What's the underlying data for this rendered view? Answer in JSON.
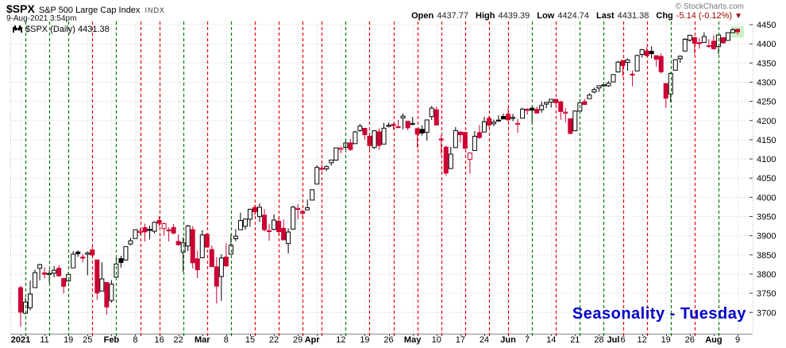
{
  "header": {
    "symbol": "$SPX",
    "name": "S&P 500 Large Cap Index",
    "exchange": "INDX",
    "datetime": "9-Aug-2021 3:54pm",
    "copyright": "© StockCharts.com",
    "quote": {
      "open_label": "Open",
      "open": "4437.77",
      "high_label": "High",
      "high": "4439.39",
      "low_label": "Low",
      "low": "4424.74",
      "last_label": "Last",
      "last": "4431.38",
      "chg_label": "Chg",
      "chg": "-5.14 (-0.12%)",
      "direction_glyph": "▼"
    }
  },
  "legend": {
    "text": "$SPX (Daily) 4431.38"
  },
  "annotation": {
    "text": "Seasonality - Tuesday",
    "color": "#0000cc"
  },
  "colors": {
    "candle_up": "#000000",
    "candle_down": "#cc0033",
    "tuesday_up_line": "#007a00",
    "tuesday_down_line": "#e60000",
    "grid": "#d6d6d6",
    "axis_line": "#888888",
    "axis_tick": "#444444",
    "axis_text": "#000000",
    "last_bar_highlight": "#ccf2c4",
    "negative_text": "#990000",
    "annotation_blue": "#0000cc"
  },
  "y_axis": {
    "min": 3700,
    "max": 4450,
    "step": 50
  },
  "x_axis": {
    "labels": [
      {
        "t": "2021",
        "i": 0,
        "b": true
      },
      {
        "t": "11",
        "i": 5
      },
      {
        "t": "19",
        "i": 10
      },
      {
        "t": "25",
        "i": 14
      },
      {
        "t": "Feb",
        "i": 19,
        "b": true
      },
      {
        "t": "8",
        "i": 24
      },
      {
        "t": "16",
        "i": 29
      },
      {
        "t": "22",
        "i": 33
      },
      {
        "t": "Mar",
        "i": 38,
        "b": true
      },
      {
        "t": "8",
        "i": 43
      },
      {
        "t": "15",
        "i": 48
      },
      {
        "t": "22",
        "i": 53
      },
      {
        "t": "29",
        "i": 58
      },
      {
        "t": "Apr",
        "i": 61,
        "b": true
      },
      {
        "t": "12",
        "i": 67
      },
      {
        "t": "19",
        "i": 72
      },
      {
        "t": "26",
        "i": 77
      },
      {
        "t": "May",
        "i": 82,
        "b": true
      },
      {
        "t": "10",
        "i": 87
      },
      {
        "t": "17",
        "i": 92
      },
      {
        "t": "24",
        "i": 97
      },
      {
        "t": "Jun",
        "i": 102,
        "b": true
      },
      {
        "t": "7",
        "i": 106
      },
      {
        "t": "14",
        "i": 111
      },
      {
        "t": "21",
        "i": 116
      },
      {
        "t": "28",
        "i": 121
      },
      {
        "t": "Jul",
        "i": 124,
        "b": true
      },
      {
        "t": "6",
        "i": 126
      },
      {
        "t": "12",
        "i": 130
      },
      {
        "t": "19",
        "i": 135
      },
      {
        "t": "26",
        "i": 140
      },
      {
        "t": "Aug",
        "i": 145,
        "b": true
      },
      {
        "t": "9",
        "i": 150
      }
    ]
  },
  "chart_data": {
    "type": "candlestick",
    "title": "$SPX (Daily)",
    "timeframe": "Daily",
    "date_range": [
      "2021-01-04",
      "2021-08-09"
    ],
    "ylim": [
      3645,
      4458
    ],
    "y_tick_step": 50,
    "grid": "dotted gray: horizontal every 50 pts, vertical at each week start",
    "vertical_line_rule": "dashed line at every Tuesday: green if close above previous close, red if below",
    "candle_scheme": "hollow if close>open, filled if close<=open; black if close>=prev close, red if below",
    "candles": [
      [
        "2021-01-04",
        3764.61,
        3769.99,
        3662.71,
        3700.65
      ],
      [
        "2021-01-05",
        3698.02,
        3737.83,
        3695.07,
        3726.86
      ],
      [
        "2021-01-06",
        3712.2,
        3783.04,
        3705.34,
        3748.14
      ],
      [
        "2021-01-07",
        3764.71,
        3811.55,
        3764.71,
        3803.79
      ],
      [
        "2021-01-08",
        3815.05,
        3826.69,
        3783.6,
        3824.68
      ],
      [
        "2021-01-11",
        3803.14,
        3817.86,
        3789.02,
        3799.61
      ],
      [
        "2021-01-12",
        3801.62,
        3810.78,
        3776.51,
        3801.19
      ],
      [
        "2021-01-13",
        3802.23,
        3820.96,
        3791.5,
        3809.84
      ],
      [
        "2021-01-14",
        3814.98,
        3823.6,
        3792.86,
        3795.54
      ],
      [
        "2021-01-15",
        3788.73,
        3788.73,
        3749.62,
        3768.25
      ],
      [
        "2021-01-19",
        3781.88,
        3804.53,
        3780.37,
        3798.91
      ],
      [
        "2021-01-20",
        3816.22,
        3859.75,
        3816.22,
        3851.85
      ],
      [
        "2021-01-21",
        3857.46,
        3861.45,
        3845.05,
        3853.07
      ],
      [
        "2021-01-22",
        3844.24,
        3852.31,
        3830.41,
        3841.47
      ],
      [
        "2021-01-25",
        3851.68,
        3859.23,
        3797.16,
        3855.36
      ],
      [
        "2021-01-26",
        3862.96,
        3870.9,
        3847.78,
        3849.62
      ],
      [
        "2021-01-27",
        3836.83,
        3836.83,
        3732.48,
        3750.77
      ],
      [
        "2021-01-28",
        3755.75,
        3830.5,
        3755.75,
        3787.38
      ],
      [
        "2021-01-29",
        3778.05,
        3778.05,
        3694.12,
        3714.24
      ],
      [
        "2021-02-01",
        3731.17,
        3784.32,
        3725.62,
        3773.86
      ],
      [
        "2021-02-02",
        3791.84,
        3843.24,
        3791.84,
        3826.31
      ],
      [
        "2021-02-03",
        3840.27,
        3847.51,
        3816.68,
        3830.17
      ],
      [
        "2021-02-04",
        3836.66,
        3872.42,
        3836.66,
        3871.74
      ],
      [
        "2021-02-05",
        3878.3,
        3894.56,
        3874.93,
        3886.83
      ],
      [
        "2021-02-08",
        3892.59,
        3915.77,
        3892.59,
        3915.59
      ],
      [
        "2021-02-09",
        3910.49,
        3918.35,
        3902.64,
        3911.23
      ],
      [
        "2021-02-10",
        3920.78,
        3931.5,
        3884.94,
        3909.88
      ],
      [
        "2021-02-11",
        3916.4,
        3925.99,
        3890.39,
        3916.38
      ],
      [
        "2021-02-12",
        3911.65,
        3937.23,
        3905.78,
        3934.83
      ],
      [
        "2021-02-16",
        3939.61,
        3950.43,
        3923.85,
        3932.59
      ],
      [
        "2021-02-17",
        3918.55,
        3933.61,
        3900.48,
        3931.33
      ],
      [
        "2021-02-18",
        3915.0,
        3921.99,
        3885.03,
        3913.97
      ],
      [
        "2021-02-19",
        3921.16,
        3930.41,
        3903.07,
        3906.71
      ],
      [
        "2021-02-22",
        3885.06,
        3902.91,
        3874.09,
        3876.5
      ],
      [
        "2021-02-23",
        3857.08,
        3895.98,
        3805.59,
        3881.37
      ],
      [
        "2021-02-24",
        3873.2,
        3928.65,
        3859.6,
        3925.43
      ],
      [
        "2021-02-25",
        3915.8,
        3925.02,
        3814.04,
        3829.34
      ],
      [
        "2021-02-26",
        3839.66,
        3861.08,
        3789.54,
        3811.15
      ],
      [
        "2021-03-01",
        3842.51,
        3914.5,
        3842.51,
        3901.82
      ],
      [
        "2021-03-02",
        3903.64,
        3906.41,
        3868.57,
        3870.29
      ],
      [
        "2021-03-03",
        3863.99,
        3874.47,
        3818.86,
        3819.28
      ],
      [
        "2021-03-04",
        3818.53,
        3843.67,
        3723.34,
        3768.47
      ],
      [
        "2021-03-05",
        3793.58,
        3851.69,
        3730.19,
        3841.94
      ],
      [
        "2021-03-08",
        3844.39,
        3881.06,
        3819.25,
        3821.35
      ],
      [
        "2021-03-09",
        3851.93,
        3903.76,
        3851.93,
        3875.44
      ],
      [
        "2021-03-10",
        3891.99,
        3917.35,
        3885.73,
        3898.81
      ],
      [
        "2021-03-11",
        3915.54,
        3960.27,
        3915.54,
        3939.34
      ],
      [
        "2021-03-12",
        3924.52,
        3944.99,
        3915.21,
        3943.34
      ],
      [
        "2021-03-15",
        3942.96,
        3970.08,
        3923.54,
        3968.94
      ],
      [
        "2021-03-16",
        3973.59,
        3981.04,
        3953.44,
        3962.71
      ],
      [
        "2021-03-17",
        3949.57,
        3983.87,
        3935.74,
        3974.12
      ],
      [
        "2021-03-18",
        3953.5,
        3969.62,
        3910.87,
        3915.46
      ],
      [
        "2021-03-19",
        3913.13,
        3930.71,
        3886.75,
        3913.1
      ],
      [
        "2021-03-22",
        3916.49,
        3955.31,
        3914.17,
        3940.59
      ],
      [
        "2021-03-23",
        3937.6,
        3949.58,
        3901.68,
        3910.52
      ],
      [
        "2021-03-24",
        3919.16,
        3942.42,
        3889.07,
        3889.14
      ],
      [
        "2021-03-25",
        3879.31,
        3919.54,
        3853.5,
        3909.52
      ],
      [
        "2021-03-26",
        3917.12,
        3978.19,
        3917.12,
        3974.54
      ],
      [
        "2021-03-29",
        3969.31,
        3981.83,
        3943.25,
        3971.09
      ],
      [
        "2021-03-30",
        3963.34,
        3968.01,
        3944.35,
        3958.55
      ],
      [
        "2021-03-31",
        3967.25,
        3994.41,
        3966.98,
        3972.89
      ],
      [
        "2021-04-01",
        3992.78,
        4020.63,
        3992.78,
        4019.87
      ],
      [
        "2021-04-05",
        4034.44,
        4083.42,
        4034.44,
        4077.91
      ],
      [
        "2021-04-06",
        4075.57,
        4086.23,
        4068.14,
        4073.94
      ],
      [
        "2021-04-07",
        4074.29,
        4083.13,
        4068.31,
        4079.95
      ],
      [
        "2021-04-08",
        4089.95,
        4098.19,
        4082.54,
        4097.17
      ],
      [
        "2021-04-09",
        4096.89,
        4129.48,
        4095.51,
        4128.8
      ],
      [
        "2021-04-12",
        4124.81,
        4131.76,
        4114.82,
        4127.99
      ],
      [
        "2021-04-13",
        4130.33,
        4148.0,
        4124.43,
        4141.59
      ],
      [
        "2021-04-14",
        4141.58,
        4151.69,
        4120.87,
        4124.66
      ],
      [
        "2021-04-15",
        4139.76,
        4173.15,
        4139.76,
        4170.42
      ],
      [
        "2021-04-16",
        4174.14,
        4191.31,
        4170.75,
        4185.47
      ],
      [
        "2021-04-19",
        4179.8,
        4180.81,
        4150.47,
        4163.26
      ],
      [
        "2021-04-20",
        4159.18,
        4159.18,
        4118.38,
        4134.94
      ],
      [
        "2021-04-21",
        4129.58,
        4173.47,
        4126.35,
        4173.42
      ],
      [
        "2021-04-22",
        4170.45,
        4179.58,
        4123.69,
        4134.98
      ],
      [
        "2021-04-23",
        4138.78,
        4194.17,
        4138.78,
        4180.17
      ],
      [
        "2021-04-26",
        4185.03,
        4194.19,
        4182.36,
        4187.62
      ],
      [
        "2021-04-27",
        4189.58,
        4193.48,
        4176.82,
        4186.72
      ],
      [
        "2021-04-28",
        4183.86,
        4201.53,
        4181.78,
        4183.18
      ],
      [
        "2021-04-29",
        4206.85,
        4218.78,
        4176.85,
        4211.47
      ],
      [
        "2021-04-30",
        4198.1,
        4198.1,
        4174.85,
        4181.17
      ],
      [
        "2021-05-03",
        4191.98,
        4209.39,
        4188.03,
        4192.66
      ],
      [
        "2021-05-04",
        4179.02,
        4179.02,
        4128.59,
        4164.66
      ],
      [
        "2021-05-05",
        4177.06,
        4187.72,
        4160.94,
        4167.59
      ],
      [
        "2021-05-06",
        4169.14,
        4202.7,
        4147.33,
        4201.62
      ],
      [
        "2021-05-07",
        4210.34,
        4238.04,
        4201.64,
        4232.6
      ],
      [
        "2021-05-10",
        4228.29,
        4236.39,
        4188.13,
        4188.43
      ],
      [
        "2021-05-11",
        4150.34,
        4162.04,
        4111.53,
        4152.1
      ],
      [
        "2021-05-12",
        4130.55,
        4134.73,
        4056.88,
        4063.04
      ],
      [
        "2021-05-13",
        4074.99,
        4131.58,
        4074.99,
        4112.5
      ],
      [
        "2021-05-14",
        4129.58,
        4183.13,
        4129.58,
        4173.85
      ],
      [
        "2021-05-17",
        4169.92,
        4171.92,
        4142.69,
        4163.29
      ],
      [
        "2021-05-18",
        4169.15,
        4169.15,
        4125.81,
        4127.83
      ],
      [
        "2021-05-19",
        4098.86,
        4116.93,
        4061.41,
        4115.68
      ],
      [
        "2021-05-20",
        4121.97,
        4172.8,
        4121.97,
        4159.12
      ],
      [
        "2021-05-21",
        4168.61,
        4188.72,
        4151.72,
        4155.86
      ],
      [
        "2021-05-24",
        4170.16,
        4209.52,
        4170.16,
        4197.05
      ],
      [
        "2021-05-25",
        4205.94,
        4213.42,
        4182.6,
        4188.13
      ],
      [
        "2021-05-26",
        4191.59,
        4202.62,
        4184.89,
        4195.99
      ],
      [
        "2021-05-27",
        4201.11,
        4213.38,
        4197.14,
        4200.88
      ],
      [
        "2021-05-28",
        4210.77,
        4218.36,
        4203.57,
        4204.11
      ],
      [
        "2021-06-01",
        4216.52,
        4234.12,
        4197.59,
        4202.04
      ],
      [
        "2021-06-02",
        4206.82,
        4217.37,
        4198.27,
        4208.12
      ],
      [
        "2021-06-03",
        4191.43,
        4204.39,
        4167.93,
        4192.85
      ],
      [
        "2021-06-04",
        4206.05,
        4233.45,
        4206.05,
        4229.89
      ],
      [
        "2021-06-07",
        4229.34,
        4232.34,
        4215.66,
        4226.52
      ],
      [
        "2021-06-08",
        4232.29,
        4236.74,
        4193.19,
        4227.26
      ],
      [
        "2021-06-09",
        4229.15,
        4237.09,
        4218.74,
        4219.55
      ],
      [
        "2021-06-10",
        4228.56,
        4249.74,
        4220.32,
        4239.18
      ],
      [
        "2021-06-11",
        4242.9,
        4248.38,
        4232.25,
        4247.44
      ],
      [
        "2021-06-14",
        4248.31,
        4255.59,
        4234.07,
        4255.15
      ],
      [
        "2021-06-15",
        4255.28,
        4257.16,
        4238.35,
        4246.59
      ],
      [
        "2021-06-16",
        4248.87,
        4251.89,
        4202.45,
        4223.7
      ],
      [
        "2021-06-17",
        4220.37,
        4232.29,
        4196.05,
        4221.86
      ],
      [
        "2021-06-18",
        4204.78,
        4204.78,
        4164.4,
        4166.45
      ],
      [
        "2021-06-21",
        4173.4,
        4226.24,
        4173.4,
        4224.79
      ],
      [
        "2021-06-22",
        4224.61,
        4255.84,
        4217.27,
        4246.44
      ],
      [
        "2021-06-23",
        4249.27,
        4256.6,
        4241.43,
        4241.84
      ],
      [
        "2021-06-24",
        4256.97,
        4271.28,
        4256.97,
        4266.49
      ],
      [
        "2021-06-25",
        4274.45,
        4286.12,
        4271.16,
        4280.7
      ],
      [
        "2021-06-28",
        4284.9,
        4292.14,
        4274.67,
        4290.61
      ],
      [
        "2021-06-29",
        4293.21,
        4300.52,
        4287.04,
        4291.8
      ],
      [
        "2021-06-30",
        4290.65,
        4302.43,
        4287.99,
        4297.5
      ],
      [
        "2021-07-01",
        4300.73,
        4320.0,
        4300.73,
        4319.94
      ],
      [
        "2021-07-02",
        4326.6,
        4355.43,
        4326.6,
        4352.34
      ],
      [
        "2021-07-06",
        4356.46,
        4356.46,
        4314.37,
        4343.54
      ],
      [
        "2021-07-07",
        4351.63,
        4361.88,
        4329.79,
        4358.13
      ],
      [
        "2021-07-08",
        4321.07,
        4330.77,
        4289.37,
        4320.82
      ],
      [
        "2021-07-09",
        4329.37,
        4371.6,
        4329.37,
        4369.55
      ],
      [
        "2021-07-12",
        4372.45,
        4386.68,
        4364.0,
        4384.63
      ],
      [
        "2021-07-13",
        4381.08,
        4392.37,
        4366.92,
        4369.21
      ],
      [
        "2021-07-14",
        4380.58,
        4393.68,
        4362.4,
        4374.3
      ],
      [
        "2021-07-15",
        4369.02,
        4369.02,
        4340.7,
        4360.03
      ],
      [
        "2021-07-16",
        4367.33,
        4375.09,
        4322.53,
        4327.16
      ],
      [
        "2021-07-19",
        4296.4,
        4296.4,
        4233.13,
        4258.49
      ],
      [
        "2021-07-20",
        4269.3,
        4325.65,
        4247.17,
        4323.06
      ],
      [
        "2021-07-21",
        4331.1,
        4359.7,
        4331.1,
        4358.69
      ],
      [
        "2021-07-22",
        4361.21,
        4369.87,
        4350.63,
        4367.48
      ],
      [
        "2021-07-23",
        4381.22,
        4415.18,
        4381.22,
        4411.79
      ],
      [
        "2021-07-26",
        4409.67,
        4422.73,
        4405.47,
        4422.3
      ],
      [
        "2021-07-27",
        4416.38,
        4416.38,
        4372.51,
        4401.46
      ],
      [
        "2021-07-28",
        4402.95,
        4415.47,
        4387.01,
        4400.64
      ],
      [
        "2021-07-29",
        4403.59,
        4429.97,
        4403.59,
        4419.15
      ],
      [
        "2021-07-30",
        4395.12,
        4412.23,
        4389.68,
        4395.26
      ],
      [
        "2021-08-02",
        4406.86,
        4422.18,
        4384.81,
        4387.16
      ],
      [
        "2021-08-03",
        4392.74,
        4423.79,
        4373.0,
        4423.15
      ],
      [
        "2021-08-04",
        4415.95,
        4416.17,
        4400.23,
        4402.66
      ],
      [
        "2021-08-05",
        4408.86,
        4429.76,
        4408.86,
        4429.1
      ],
      [
        "2021-08-06",
        4429.08,
        4440.82,
        4429.08,
        4436.52
      ],
      [
        "2021-08-09",
        4437.77,
        4439.39,
        4424.74,
        4431.38
      ]
    ]
  }
}
